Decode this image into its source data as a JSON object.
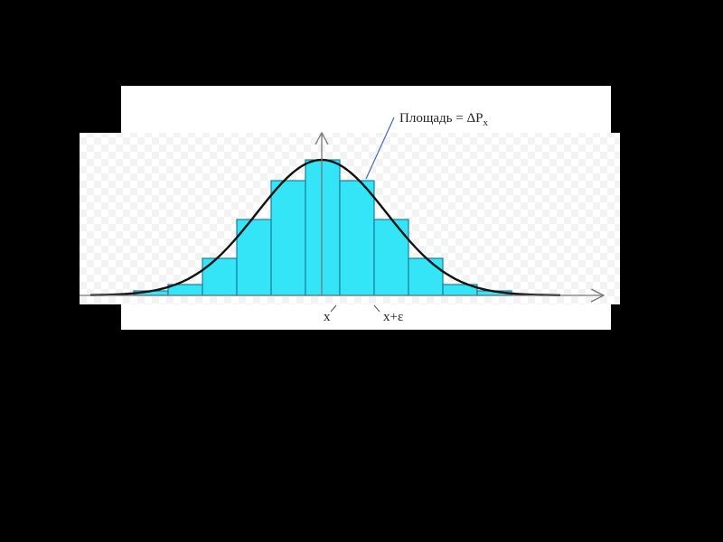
{
  "annotation": {
    "text": "Площадь = ΔP",
    "subscript": "x"
  },
  "axis_labels": [
    "x",
    "x+ε"
  ]
}
